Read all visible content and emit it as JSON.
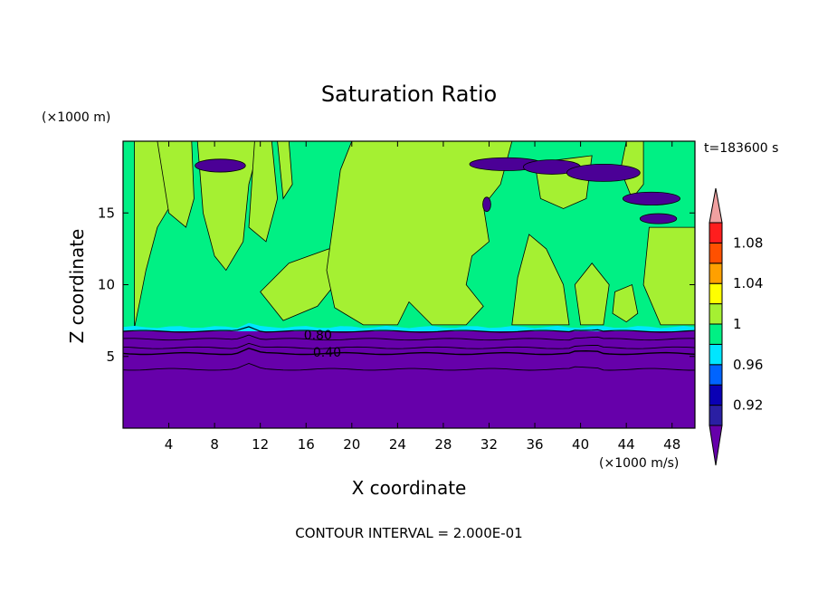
{
  "chart_data": {
    "type": "heatmap",
    "title": "Saturation Ratio",
    "xlabel": "X coordinate",
    "ylabel": "Z coordinate",
    "x_unit": "(×1000 m/s)",
    "y_unit": "(×1000 m)",
    "time_label": "t=183600 s",
    "footer": "CONTOUR INTERVAL = 2.000E-01",
    "xlim": [
      0,
      50
    ],
    "ylim": [
      0,
      20
    ],
    "x_ticks": [
      4,
      8,
      12,
      16,
      20,
      24,
      28,
      32,
      36,
      40,
      44,
      48
    ],
    "y_ticks": [
      5,
      10,
      15
    ],
    "contour_labels": [
      {
        "text": "0.80",
        "x": 15.8,
        "z": 6.5
      },
      {
        "text": "0.40",
        "x": 16.6,
        "z": 5.3
      }
    ],
    "colorbar": {
      "levels": [
        0.9,
        0.92,
        0.94,
        0.96,
        0.98,
        1.0,
        1.02,
        1.04,
        1.06,
        1.08,
        1.1
      ],
      "tick_labels": [
        "1.08",
        "1.04",
        "1",
        "0.96",
        "0.92"
      ],
      "colors": [
        "#6600aa",
        "#2a1fa3",
        "#0a00b4",
        "#0064ff",
        "#00e6ff",
        "#00f084",
        "#a5f032",
        "#ffff00",
        "#ffa000",
        "#ff5000",
        "#ff1e1e",
        "#f0a0a0"
      ]
    },
    "colors": {
      "low": "#6600aa",
      "band": "#00f084",
      "cloud": "#a5f032",
      "dark": "#4b0096"
    }
  }
}
